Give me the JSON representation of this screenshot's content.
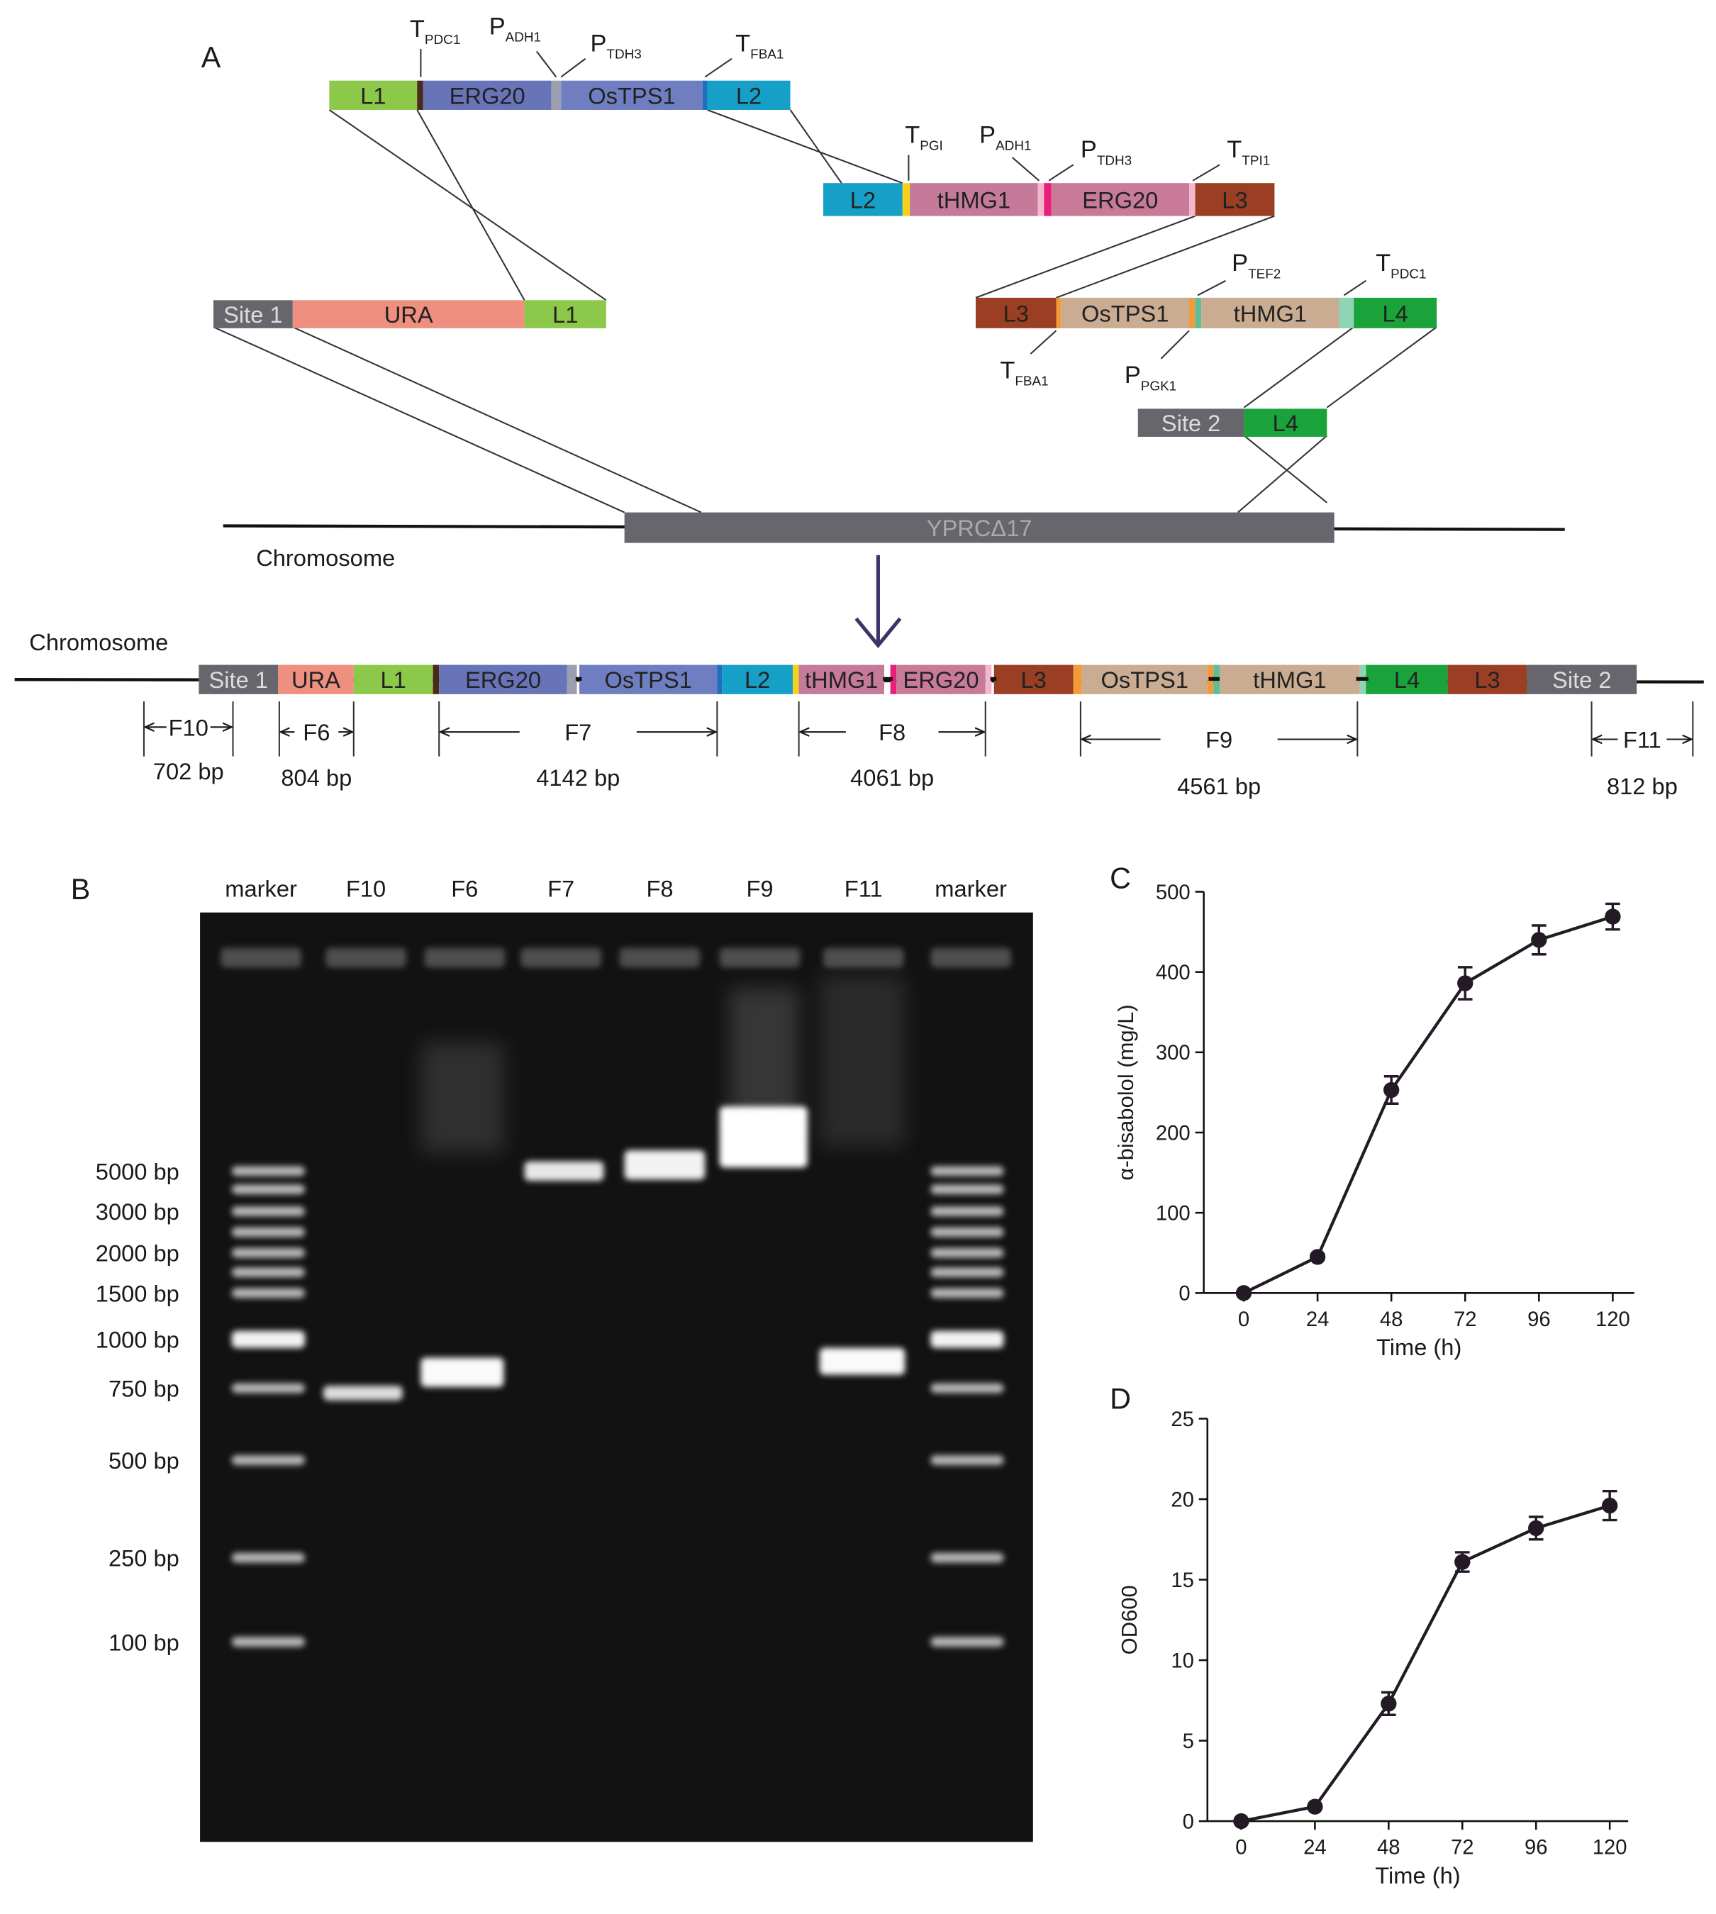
{
  "panel_a": {
    "label": "A",
    "cassette_1": [
      "L1",
      "ERG20",
      "OsTPS1",
      "L2"
    ],
    "cassette_2": [
      "L2",
      "tHMG1",
      "ERG20",
      "L3"
    ],
    "cassette_3": [
      "L3",
      "OsTPS1",
      "tHMG1",
      "L4"
    ],
    "ura_cassette": [
      "Site 1",
      "URA",
      "L1"
    ],
    "site_2_cassette": [
      "Site 2",
      "L4"
    ],
    "elements": [
      {
        "main": "T",
        "sub": "PDC1"
      },
      {
        "main": "P",
        "sub": "ADH1"
      },
      {
        "main": "P",
        "sub": "TDH3"
      },
      {
        "main": "T",
        "sub": "FBA1"
      },
      {
        "main": "T",
        "sub": "PGI"
      },
      {
        "main": "P",
        "sub": "ADH1"
      },
      {
        "main": "P",
        "sub": "TDH3"
      },
      {
        "main": "T",
        "sub": "TPI1"
      },
      {
        "main": "P",
        "sub": "TEF2"
      },
      {
        "main": "T",
        "sub": "PDC1"
      },
      {
        "main": "T",
        "sub": "FBA1"
      },
      {
        "main": "P",
        "sub": "PGK1"
      }
    ],
    "target": "YPRCΔ17",
    "chromosome_labels": [
      "Chromosome",
      "Chromosome"
    ],
    "integrated": [
      "Site 1",
      "URA",
      "L1",
      "ERG20",
      "OsTPS1",
      "L2",
      "tHMG1",
      "ERG20",
      "L3",
      "OsTPS1",
      "tHMG1",
      "L4",
      "L3",
      "Site 2"
    ],
    "fragments": [
      {
        "name": "F10",
        "size": "702 bp"
      },
      {
        "name": "F6",
        "size": "804 bp"
      },
      {
        "name": "F7",
        "size": "4142 bp"
      },
      {
        "name": "F8",
        "size": "4061 bp"
      },
      {
        "name": "F9",
        "size": "4561 bp"
      },
      {
        "name": "F11",
        "size": "812 bp"
      }
    ]
  },
  "panel_b": {
    "label": "B",
    "lanes": [
      "marker",
      "F10",
      "F6",
      "F7",
      "F8",
      "F9",
      "F11",
      "marker"
    ],
    "sizes": [
      "5000 bp",
      "3000 bp",
      "2000 bp",
      "1500 bp",
      "1000 bp",
      "750 bp",
      "500 bp",
      "250 bp",
      "100 bp"
    ]
  },
  "chart_data": [
    {
      "type": "line",
      "panel": "C",
      "x": [
        0,
        24,
        48,
        72,
        96,
        120
      ],
      "values": [
        0,
        45,
        253,
        386,
        440,
        469
      ],
      "errors": [
        0,
        3,
        17,
        20,
        18,
        16
      ],
      "color": "#231a26",
      "xlim": [
        -13,
        127
      ],
      "ylim": [
        0,
        500
      ],
      "xticks": [
        0,
        24,
        48,
        72,
        96,
        120
      ],
      "yticks": [
        0,
        100,
        200,
        300,
        400,
        500
      ],
      "x_label": "Time (h)",
      "y_label": "α-bisabolol (mg/L)"
    },
    {
      "type": "line",
      "panel": "D",
      "x": [
        0,
        24,
        48,
        72,
        96,
        120
      ],
      "values": [
        0,
        0.9,
        7.3,
        16.1,
        18.2,
        19.6
      ],
      "errors": [
        0,
        0.1,
        0.7,
        0.6,
        0.7,
        0.9
      ],
      "color": "#231a26",
      "xlim": [
        -11,
        126
      ],
      "ylim": [
        0,
        25
      ],
      "xticks": [
        0,
        24,
        48,
        72,
        96,
        120
      ],
      "yticks": [
        0,
        5,
        10,
        15,
        20,
        25
      ],
      "x_label": "Time (h)",
      "y_label": "OD600"
    }
  ]
}
